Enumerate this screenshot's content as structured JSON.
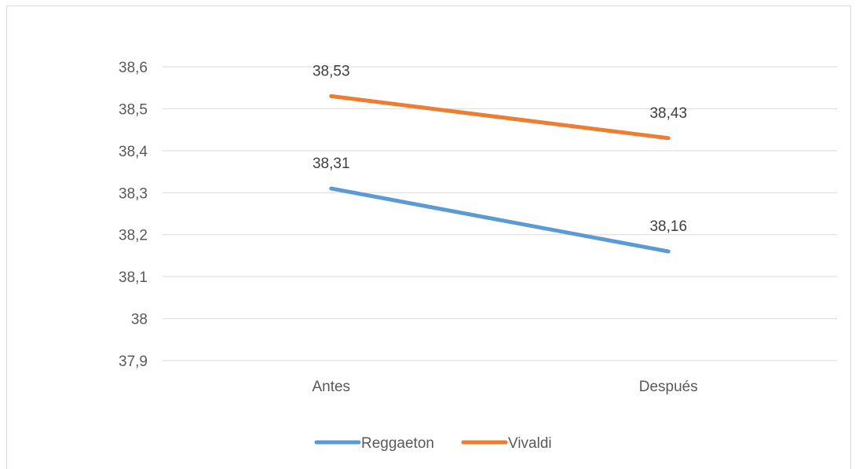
{
  "chart_data": {
    "type": "line",
    "categories": [
      "Antes",
      "Después"
    ],
    "series": [
      {
        "name": "Reggaeton",
        "values": [
          38.31,
          38.16
        ],
        "labels": [
          "38,31",
          "38,16"
        ],
        "color": "#5b9bd5"
      },
      {
        "name": "Vivaldi",
        "values": [
          38.53,
          38.43
        ],
        "labels": [
          "38,53",
          "38,43"
        ],
        "color": "#ed7d31"
      }
    ],
    "ylim": [
      37.9,
      38.6
    ],
    "yticks": [
      {
        "value": 37.9,
        "label": "37,9"
      },
      {
        "value": 38.0,
        "label": "38"
      },
      {
        "value": 38.1,
        "label": "38,1"
      },
      {
        "value": 38.2,
        "label": "38,2"
      },
      {
        "value": 38.3,
        "label": "38,3"
      },
      {
        "value": 38.4,
        "label": "38,4"
      },
      {
        "value": 38.5,
        "label": "38,5"
      },
      {
        "value": 38.6,
        "label": "38,6"
      }
    ],
    "grid": true,
    "legend": "bottom",
    "title": "",
    "xlabel": "",
    "ylabel": ""
  }
}
